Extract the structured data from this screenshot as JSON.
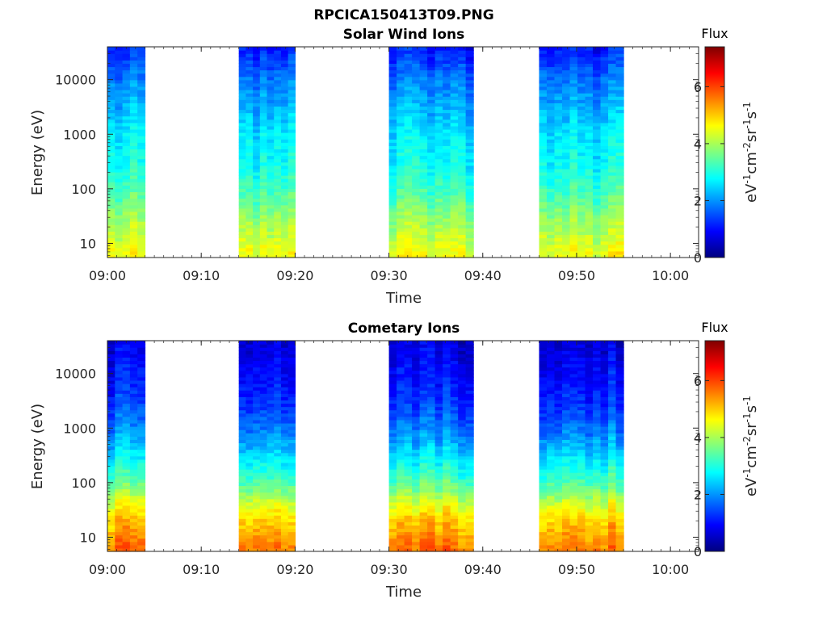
{
  "figure_title": "RPCICA150413T09.PNG",
  "colors": {
    "colormap": "jet",
    "colormap_stops": [
      "#00007f",
      "#0000ff",
      "#007fff",
      "#00ffff",
      "#7fff7f",
      "#ffff00",
      "#ff7f00",
      "#ff0000",
      "#7f0000"
    ],
    "axis": "#262626",
    "missing_data": "#ffffff"
  },
  "chart_data": [
    {
      "type": "heatmap",
      "title": "Solar Wind Ions",
      "xlabel": "Time",
      "ylabel": "Energy (eV)",
      "x_ticks": [
        "09:00",
        "09:10",
        "09:20",
        "09:30",
        "09:40",
        "09:50",
        "10:00"
      ],
      "x_range": [
        "09:00",
        "10:03"
      ],
      "y_scale": "log",
      "y_ticks": [
        "10",
        "100",
        "1000",
        "10000"
      ],
      "y_range": [
        5.5,
        40000
      ],
      "colorbar": {
        "title": "Flux",
        "label": "eV-1cm-2sr-1s-1",
        "ticks": [
          "0",
          "2",
          "4",
          "6"
        ],
        "range": [
          0,
          7.4
        ]
      },
      "data_intervals": [
        [
          "09:00",
          "09:04"
        ],
        [
          "09:14",
          "09:20"
        ],
        [
          "09:30",
          "09:39"
        ],
        [
          "09:46",
          "09:55"
        ]
      ],
      "approx_flux_profile": {
        "energy_eV": [
          7,
          10,
          30,
          100,
          300,
          1000,
          3000,
          10000,
          35000
        ],
        "flux": [
          4.5,
          4.3,
          3.8,
          3.2,
          2.8,
          2.6,
          2.2,
          1.8,
          1.1
        ]
      }
    },
    {
      "type": "heatmap",
      "title": "Cometary Ions",
      "xlabel": "Time",
      "ylabel": "Energy (eV)",
      "x_ticks": [
        "09:00",
        "09:10",
        "09:20",
        "09:30",
        "09:40",
        "09:50",
        "10:00"
      ],
      "x_range": [
        "09:00",
        "10:03"
      ],
      "y_scale": "log",
      "y_ticks": [
        "10",
        "100",
        "1000",
        "10000"
      ],
      "y_range": [
        5.5,
        40000
      ],
      "colorbar": {
        "title": "Flux",
        "label": "eV-1cm-2sr-1s-1",
        "ticks": [
          "0",
          "2",
          "4",
          "6"
        ],
        "range": [
          0,
          7.4
        ]
      },
      "data_intervals": [
        [
          "09:00",
          "09:04"
        ],
        [
          "09:14",
          "09:20"
        ],
        [
          "09:30",
          "09:39"
        ],
        [
          "09:46",
          "09:55"
        ]
      ],
      "approx_flux_profile": {
        "energy_eV": [
          7,
          10,
          20,
          40,
          100,
          300,
          1000,
          3000,
          10000,
          35000
        ],
        "flux": [
          5.6,
          5.4,
          5.0,
          4.4,
          3.4,
          2.6,
          1.8,
          1.3,
          1.0,
          0.7
        ]
      }
    }
  ]
}
